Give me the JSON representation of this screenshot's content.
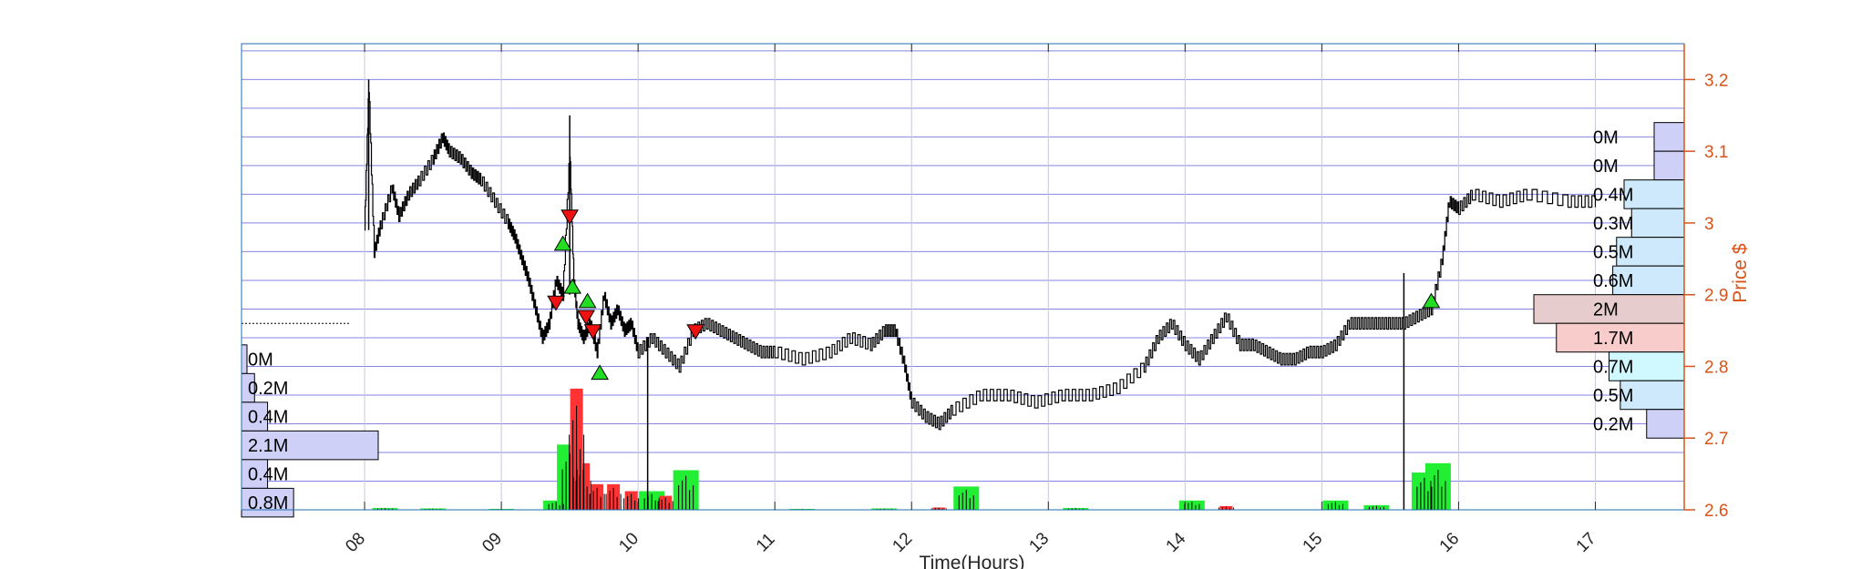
{
  "chart_data": {
    "type": "line",
    "title": "",
    "xlabel": "Time(Hours)",
    "ylabel": "Price $",
    "x_ticks": [
      "08",
      "09",
      "10",
      "11",
      "12",
      "13",
      "14",
      "15",
      "16",
      "17"
    ],
    "xlim": [
      7.1,
      17.65
    ],
    "y_ticks": [
      "2.6",
      "2.7",
      "2.8",
      "2.9",
      "3",
      "3.1",
      "3.2"
    ],
    "ylim": [
      2.6,
      3.25
    ],
    "grid": true,
    "colors": {
      "price_line": "#000000",
      "right_axis": "#d95319",
      "grid_h": "#5b5bdf",
      "grid_v": "#c8c8d8",
      "buy_marker": "#22dd22",
      "sell_marker": "#ee1111",
      "vol_up": "#22ee33",
      "vol_down": "#ff3333",
      "profile_blue": "#cfd0f8",
      "profile_lightblue": "#cde9fb",
      "profile_cyan": "#d0f8ff",
      "profile_red": "#f9cccc",
      "profile_poc": "#e6cccc"
    },
    "price_series": {
      "name": "",
      "points": [
        [
          8.0,
          2.99
        ],
        [
          8.03,
          3.19
        ],
        [
          8.07,
          2.96
        ],
        [
          8.12,
          3.0
        ],
        [
          8.2,
          3.05
        ],
        [
          8.25,
          3.01
        ],
        [
          8.32,
          3.04
        ],
        [
          8.4,
          3.06
        ],
        [
          8.5,
          3.09
        ],
        [
          8.57,
          3.12
        ],
        [
          8.62,
          3.1
        ],
        [
          8.7,
          3.09
        ],
        [
          8.78,
          3.07
        ],
        [
          8.85,
          3.06
        ],
        [
          8.95,
          3.03
        ],
        [
          9.05,
          3.0
        ],
        [
          9.1,
          2.98
        ],
        [
          9.15,
          2.95
        ],
        [
          9.2,
          2.92
        ],
        [
          9.25,
          2.88
        ],
        [
          9.3,
          2.84
        ],
        [
          9.35,
          2.86
        ],
        [
          9.4,
          2.92
        ],
        [
          9.45,
          2.9
        ],
        [
          9.5,
          3.1
        ],
        [
          9.53,
          2.92
        ],
        [
          9.56,
          2.86
        ],
        [
          9.6,
          2.84
        ],
        [
          9.65,
          2.86
        ],
        [
          9.7,
          2.82
        ],
        [
          9.75,
          2.9
        ],
        [
          9.8,
          2.86
        ],
        [
          9.85,
          2.88
        ],
        [
          9.9,
          2.85
        ],
        [
          9.95,
          2.86
        ],
        [
          10.0,
          2.82
        ],
        [
          10.1,
          2.84
        ],
        [
          10.2,
          2.82
        ],
        [
          10.3,
          2.8
        ],
        [
          10.4,
          2.85
        ],
        [
          10.5,
          2.86
        ],
        [
          10.6,
          2.85
        ],
        [
          10.7,
          2.84
        ],
        [
          10.8,
          2.83
        ],
        [
          10.9,
          2.82
        ],
        [
          11.0,
          2.82
        ],
        [
          11.2,
          2.81
        ],
        [
          11.4,
          2.82
        ],
        [
          11.55,
          2.84
        ],
        [
          11.7,
          2.83
        ],
        [
          11.8,
          2.85
        ],
        [
          11.88,
          2.85
        ],
        [
          11.95,
          2.8
        ],
        [
          12.0,
          2.75
        ],
        [
          12.1,
          2.73
        ],
        [
          12.2,
          2.72
        ],
        [
          12.3,
          2.74
        ],
        [
          12.5,
          2.76
        ],
        [
          12.7,
          2.76
        ],
        [
          12.9,
          2.75
        ],
        [
          13.1,
          2.76
        ],
        [
          13.3,
          2.76
        ],
        [
          13.5,
          2.77
        ],
        [
          13.7,
          2.8
        ],
        [
          13.8,
          2.84
        ],
        [
          13.9,
          2.86
        ],
        [
          14.0,
          2.83
        ],
        [
          14.1,
          2.81
        ],
        [
          14.2,
          2.84
        ],
        [
          14.3,
          2.87
        ],
        [
          14.4,
          2.83
        ],
        [
          14.5,
          2.83
        ],
        [
          14.6,
          2.82
        ],
        [
          14.7,
          2.81
        ],
        [
          14.8,
          2.81
        ],
        [
          14.9,
          2.82
        ],
        [
          15.0,
          2.82
        ],
        [
          15.1,
          2.83
        ],
        [
          15.2,
          2.86
        ],
        [
          15.3,
          2.86
        ],
        [
          15.4,
          2.86
        ],
        [
          15.5,
          2.86
        ],
        [
          15.6,
          2.86
        ],
        [
          15.7,
          2.87
        ],
        [
          15.8,
          2.88
        ],
        [
          15.88,
          2.95
        ],
        [
          15.93,
          3.03
        ],
        [
          16.0,
          3.02
        ],
        [
          16.1,
          3.04
        ],
        [
          16.3,
          3.03
        ],
        [
          16.5,
          3.04
        ],
        [
          16.8,
          3.03
        ],
        [
          17.0,
          3.03
        ]
      ]
    },
    "buy_signals": [
      [
        9.45,
        2.97
      ],
      [
        9.52,
        2.91
      ],
      [
        9.63,
        2.89
      ],
      [
        9.72,
        2.79
      ],
      [
        15.8,
        2.89
      ]
    ],
    "sell_signals": [
      [
        9.5,
        3.01
      ],
      [
        9.4,
        2.89
      ],
      [
        9.62,
        2.87
      ],
      [
        9.67,
        2.85
      ],
      [
        10.42,
        2.85
      ]
    ],
    "volume": {
      "up": [
        [
          8.15,
          0.004
        ],
        [
          8.5,
          0.003
        ],
        [
          9.0,
          0.002
        ],
        [
          9.4,
          0.02
        ],
        [
          9.5,
          0.14
        ],
        [
          10.1,
          0.04
        ],
        [
          10.35,
          0.085
        ],
        [
          11.2,
          0.002
        ],
        [
          11.8,
          0.003
        ],
        [
          12.4,
          0.05
        ],
        [
          13.2,
          0.004
        ],
        [
          14.05,
          0.02
        ],
        [
          15.1,
          0.02
        ],
        [
          15.4,
          0.01
        ],
        [
          15.75,
          0.08
        ],
        [
          15.85,
          0.1
        ]
      ],
      "down": [
        [
          9.55,
          0.26
        ],
        [
          9.6,
          0.1
        ],
        [
          9.7,
          0.055
        ],
        [
          9.82,
          0.055
        ],
        [
          9.95,
          0.04
        ],
        [
          10.2,
          0.03
        ],
        [
          12.2,
          0.005
        ],
        [
          14.3,
          0.008
        ]
      ]
    },
    "volume_profile_left": [
      {
        "price": 2.81,
        "label": "0M",
        "value": 0.05
      },
      {
        "price": 2.77,
        "label": "0.2M",
        "value": 0.2
      },
      {
        "price": 2.73,
        "label": "0.4M",
        "value": 0.4
      },
      {
        "price": 2.69,
        "label": "2.1M",
        "value": 2.1
      },
      {
        "price": 2.65,
        "label": "0.4M",
        "value": 0.4
      },
      {
        "price": 2.61,
        "label": "0.8M",
        "value": 0.8
      }
    ],
    "volume_profile_right": [
      {
        "price": 3.12,
        "label": "0M",
        "value": 0.4,
        "color": "profile_blue"
      },
      {
        "price": 3.08,
        "label": "0M",
        "value": 0.4,
        "color": "profile_blue"
      },
      {
        "price": 3.04,
        "label": "0.4M",
        "value": 0.8,
        "color": "profile_lightblue"
      },
      {
        "price": 3.0,
        "label": "0.3M",
        "value": 0.7,
        "color": "profile_lightblue"
      },
      {
        "price": 2.96,
        "label": "0.5M",
        "value": 0.9,
        "color": "profile_lightblue"
      },
      {
        "price": 2.92,
        "label": "0.6M",
        "value": 0.95,
        "color": "profile_lightblue"
      },
      {
        "price": 2.88,
        "label": "2M",
        "value": 2.0,
        "color": "profile_poc"
      },
      {
        "price": 2.84,
        "label": "1.7M",
        "value": 1.7,
        "color": "profile_red"
      },
      {
        "price": 2.8,
        "label": "0.7M",
        "value": 1.0,
        "color": "profile_cyan"
      },
      {
        "price": 2.76,
        "label": "0.5M",
        "value": 0.85,
        "color": "profile_lightblue"
      },
      {
        "price": 2.72,
        "label": "0.2M",
        "value": 0.5,
        "color": "profile_blue"
      }
    ]
  }
}
